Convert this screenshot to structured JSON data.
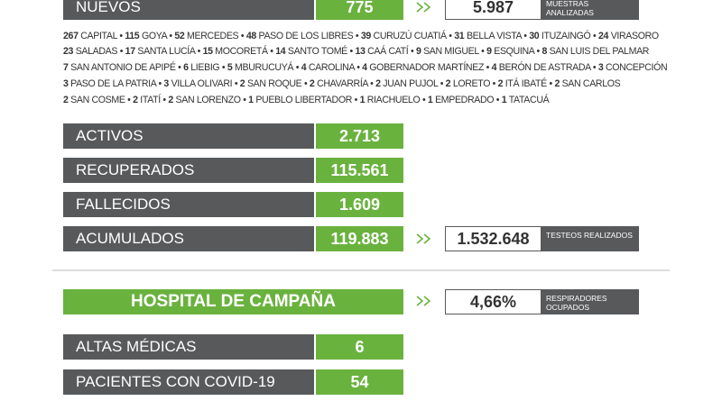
{
  "top": {
    "label": "NUEVOS",
    "value": "775",
    "box_value": "5.987",
    "box_label": "MUESTRAS ANALIZADAS"
  },
  "localities": [
    [
      [
        267,
        "CAPITAL"
      ],
      [
        115,
        "GOYA"
      ],
      [
        52,
        "MERCEDES"
      ],
      [
        48,
        "PASO DE LOS LIBRES"
      ],
      [
        39,
        "CURUZÚ CUATIÁ"
      ],
      [
        31,
        "BELLA VISTA"
      ],
      [
        30,
        "ITUZAINGÓ"
      ],
      [
        24,
        "VIRASORO"
      ]
    ],
    [
      [
        23,
        "SALADAS"
      ],
      [
        17,
        "SANTA LUCÍA"
      ],
      [
        15,
        "MOCORETÁ"
      ],
      [
        14,
        "SANTO TOMÉ"
      ],
      [
        13,
        "CAÁ CATÍ"
      ],
      [
        9,
        "SAN MIGUEL"
      ],
      [
        9,
        "ESQUINA"
      ],
      [
        8,
        "SAN LUIS DEL PALMAR"
      ]
    ],
    [
      [
        7,
        "SAN ANTONIO DE APIPÉ"
      ],
      [
        6,
        "LIEBIG"
      ],
      [
        5,
        "MBURUCUYÁ"
      ],
      [
        4,
        "CAROLINA"
      ],
      [
        4,
        "GOBERNADOR MARTÍNEZ"
      ],
      [
        4,
        "BERÓN DE ASTRADA"
      ],
      [
        3,
        "CONCEPCIÓN"
      ]
    ],
    [
      [
        3,
        "PASO DE LA PATRIA"
      ],
      [
        3,
        "VILLA OLIVARI"
      ],
      [
        2,
        "SAN ROQUE"
      ],
      [
        2,
        "CHAVARRÍA"
      ],
      [
        2,
        "JUAN PUJOL"
      ],
      [
        2,
        "LORETO"
      ],
      [
        2,
        "ITÁ IBATÉ"
      ],
      [
        2,
        "SAN CARLOS"
      ]
    ],
    [
      [
        2,
        "SAN COSME"
      ],
      [
        2,
        "ITATÍ"
      ],
      [
        2,
        "SAN LORENZO"
      ],
      [
        1,
        "PUEBLO LIBERTADOR"
      ],
      [
        1,
        "RIACHUELO"
      ],
      [
        1,
        "EMPEDRADO"
      ],
      [
        1,
        "TATACUÁ"
      ]
    ]
  ],
  "stats": [
    {
      "label": "ACTIVOS",
      "value": "2.713"
    },
    {
      "label": "RECUPERADOS",
      "value": "115.561"
    },
    {
      "label": "FALLECIDOS",
      "value": "1.609"
    },
    {
      "label": "ACUMULADOS",
      "value": "119.883",
      "box_value": "1.532.648",
      "box_label": "TESTEOS REALIZADOS"
    }
  ],
  "hospital": {
    "title": "HOSPITAL DE CAMPAÑA",
    "box_value": "4,66%",
    "box_label": "RESPIRADORES OCUPADOS",
    "rows": [
      {
        "label": "ALTAS MÉDICAS",
        "value": "6"
      },
      {
        "label": "PACIENTES CON COVID-19",
        "value": "54"
      }
    ]
  }
}
